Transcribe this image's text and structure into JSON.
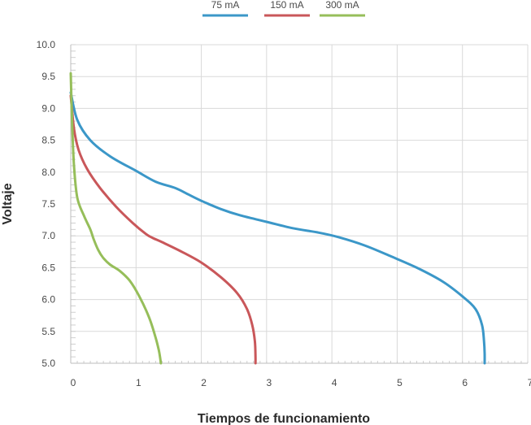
{
  "chart_data": {
    "type": "line",
    "title": "",
    "xlabel": "Tiempos de funcionamiento",
    "ylabel": "Voltaje",
    "xlim": [
      0,
      7
    ],
    "ylim": [
      5.0,
      10.0
    ],
    "xticks": [
      "0",
      "1",
      "2",
      "3",
      "4",
      "5",
      "6",
      "7"
    ],
    "yticks": [
      "5.0",
      "5.5",
      "6.0",
      "6.5",
      "7.0",
      "7.5",
      "8.0",
      "8.5",
      "9.0",
      "9.5",
      "10.0"
    ],
    "grid": true,
    "legend_position": "top-center",
    "series": [
      {
        "name": "75 mA",
        "color": "#3b97c8",
        "x": [
          0.0,
          0.1,
          0.3,
          0.6,
          1.0,
          1.3,
          1.6,
          1.8,
          2.0,
          2.3,
          2.6,
          3.0,
          3.4,
          3.8,
          4.1,
          4.5,
          4.9,
          5.3,
          5.7,
          6.0,
          6.2,
          6.3,
          6.33,
          6.34,
          6.34
        ],
        "y": [
          9.25,
          8.82,
          8.5,
          8.25,
          8.02,
          7.85,
          7.75,
          7.65,
          7.55,
          7.42,
          7.32,
          7.22,
          7.12,
          7.05,
          6.98,
          6.85,
          6.68,
          6.5,
          6.28,
          6.05,
          5.85,
          5.6,
          5.35,
          5.15,
          5.0
        ]
      },
      {
        "name": "150 mA",
        "color": "#c9575a",
        "x": [
          0.0,
          0.05,
          0.12,
          0.25,
          0.45,
          0.7,
          0.95,
          1.15,
          1.25,
          1.4,
          1.7,
          2.0,
          2.3,
          2.55,
          2.7,
          2.78,
          2.82,
          2.83,
          2.83
        ],
        "y": [
          9.2,
          8.68,
          8.35,
          8.05,
          7.75,
          7.45,
          7.2,
          7.03,
          6.97,
          6.9,
          6.75,
          6.58,
          6.35,
          6.1,
          5.85,
          5.6,
          5.35,
          5.1,
          5.0
        ]
      },
      {
        "name": "300 mA",
        "color": "#96be5a",
        "x": [
          0.0,
          0.02,
          0.05,
          0.1,
          0.2,
          0.3,
          0.35,
          0.42,
          0.5,
          0.6,
          0.75,
          0.9,
          1.05,
          1.2,
          1.3,
          1.35,
          1.37,
          1.38
        ],
        "y": [
          9.55,
          8.8,
          8.1,
          7.6,
          7.32,
          7.1,
          6.95,
          6.78,
          6.65,
          6.55,
          6.45,
          6.3,
          6.05,
          5.72,
          5.4,
          5.2,
          5.08,
          5.0
        ]
      }
    ]
  }
}
